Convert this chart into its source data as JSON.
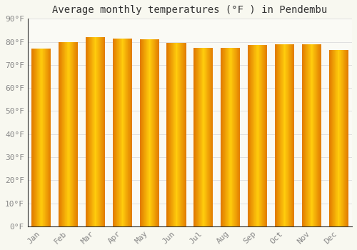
{
  "title": "Average monthly temperatures (°F ) in Pendembu",
  "months": [
    "Jan",
    "Feb",
    "Mar",
    "Apr",
    "May",
    "Jun",
    "Jul",
    "Aug",
    "Sep",
    "Oct",
    "Nov",
    "Dec"
  ],
  "values": [
    77,
    80,
    82,
    81.5,
    81,
    79.5,
    77.5,
    77.5,
    78.5,
    79,
    79,
    76.5
  ],
  "bar_color_center": "#FFCC00",
  "bar_color_edge": "#E07800",
  "ylim": [
    0,
    90
  ],
  "yticks": [
    0,
    10,
    20,
    30,
    40,
    50,
    60,
    70,
    80,
    90
  ],
  "ytick_labels": [
    "0°F",
    "10°F",
    "20°F",
    "30°F",
    "40°F",
    "50°F",
    "60°F",
    "70°F",
    "80°F",
    "90°F"
  ],
  "background_color": "#F8F8F0",
  "plot_background": "#FAFAF5",
  "grid_color": "#E0E0E0",
  "title_fontsize": 10,
  "tick_fontsize": 8,
  "tick_color": "#888888",
  "font_family": "monospace",
  "bar_width": 0.72,
  "n_gradient_steps": 40
}
